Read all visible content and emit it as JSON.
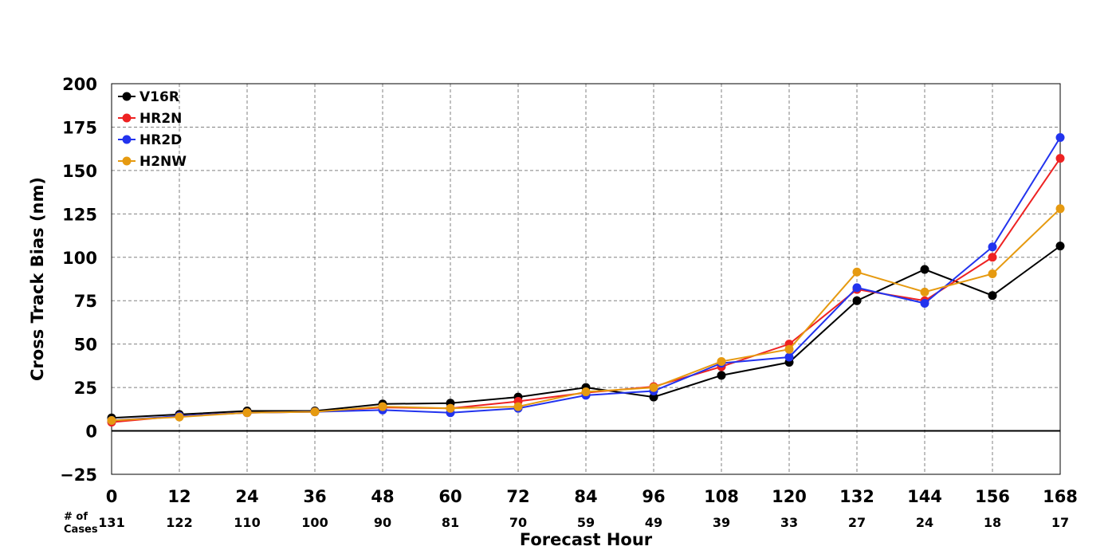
{
  "chart_data": {
    "type": "line",
    "xlabel": "Forecast Hour",
    "ylabel": "Cross Track Bias (nm)",
    "x": [
      0,
      12,
      24,
      36,
      48,
      60,
      72,
      84,
      96,
      108,
      120,
      132,
      144,
      156,
      168
    ],
    "xlim": [
      0,
      168
    ],
    "ylim": [
      -25,
      200
    ],
    "yticks": [
      -25,
      0,
      25,
      50,
      75,
      100,
      125,
      150,
      175,
      200
    ],
    "ytick_labels": [
      "−25",
      "0",
      "25",
      "50",
      "75",
      "100",
      "125",
      "150",
      "175",
      "200"
    ],
    "grid": true,
    "legend_position": "top-left",
    "cases_label_line1": "# of",
    "cases_label_line2": "Cases",
    "cases": [
      131,
      122,
      110,
      100,
      90,
      81,
      70,
      59,
      49,
      39,
      33,
      27,
      24,
      18,
      17
    ],
    "series": [
      {
        "name": "V16R",
        "color": "#000000",
        "values": [
          7.5,
          9.5,
          11.5,
          11.5,
          15.5,
          16,
          19.5,
          25,
          19.5,
          32,
          39.5,
          75,
          93,
          78,
          106.5
        ]
      },
      {
        "name": "HR2N",
        "color": "#ee2222",
        "values": [
          5,
          8.5,
          10.5,
          11,
          13.5,
          13,
          17,
          22,
          25.5,
          37,
          50,
          81.5,
          75,
          100,
          157
        ]
      },
      {
        "name": "HR2D",
        "color": "#2233ee",
        "values": [
          6,
          8.5,
          10.5,
          11,
          12,
          10.5,
          13,
          20.5,
          23,
          39,
          42.5,
          82.5,
          73.5,
          106,
          169
        ]
      },
      {
        "name": "H2NW",
        "color": "#e69a10",
        "values": [
          6,
          8,
          10.5,
          11,
          14,
          13,
          14,
          22.5,
          25,
          40,
          47,
          91.5,
          80,
          90.5,
          128
        ]
      }
    ]
  }
}
